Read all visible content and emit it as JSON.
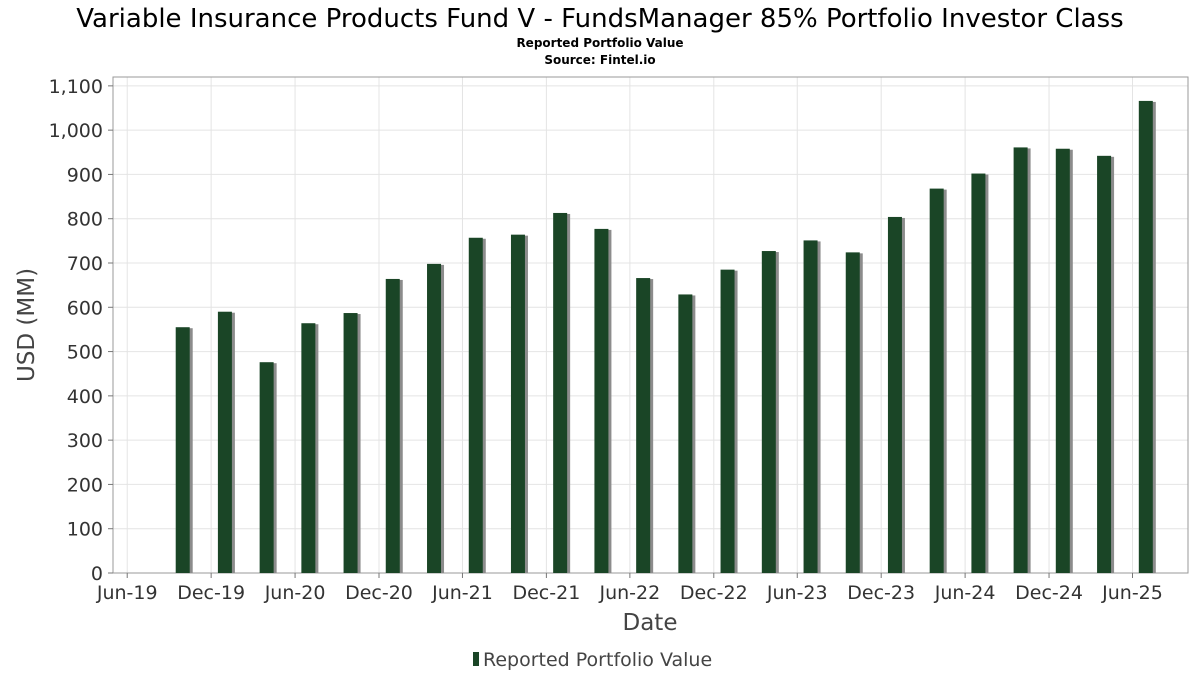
{
  "chart_data": {
    "type": "bar",
    "title": "Variable Insurance Products Fund V - FundsManager 85% Portfolio Investor Class",
    "subtitle": "Reported Portfolio Value",
    "source": "Source: Fintel.io",
    "xlabel": "Date",
    "ylabel": "USD (MM)",
    "ylim": [
      0,
      1120
    ],
    "yticks": [
      0,
      100,
      200,
      300,
      400,
      500,
      600,
      700,
      800,
      900,
      1000,
      1100
    ],
    "ytick_labels": [
      "0",
      "100",
      "200",
      "300",
      "400",
      "500",
      "600",
      "700",
      "800",
      "900",
      "1,000",
      "1,100"
    ],
    "xlim": [
      "2019-05-01",
      "2025-09-30"
    ],
    "xticks": [
      "2019-06-01",
      "2019-12-01",
      "2020-06-01",
      "2020-12-01",
      "2021-06-01",
      "2021-12-01",
      "2022-06-01",
      "2022-12-01",
      "2023-06-01",
      "2023-12-01",
      "2024-06-01",
      "2024-12-01",
      "2025-06-01"
    ],
    "xtick_labels": [
      "Jun-19",
      "Dec-19",
      "Jun-20",
      "Dec-20",
      "Jun-21",
      "Dec-21",
      "Jun-22",
      "Dec-22",
      "Jun-23",
      "Dec-23",
      "Jun-24",
      "Dec-24",
      "Jun-25"
    ],
    "grid": true,
    "legend_position": "bottom",
    "colors": {
      "bar": "#1a4526",
      "bar_shadow": "#8c8c8c"
    },
    "series": [
      {
        "name": "Reported Portfolio Value",
        "x": [
          "2019-09-30",
          "2019-12-31",
          "2020-03-31",
          "2020-06-30",
          "2020-09-30",
          "2020-12-31",
          "2021-03-31",
          "2021-06-30",
          "2021-09-30",
          "2021-12-31",
          "2022-03-31",
          "2022-06-30",
          "2022-09-30",
          "2022-12-31",
          "2023-03-31",
          "2023-06-30",
          "2023-09-30",
          "2023-12-31",
          "2024-03-31",
          "2024-06-30",
          "2024-09-30",
          "2024-12-31",
          "2025-03-31",
          "2025-06-30"
        ],
        "values": [
          555,
          590,
          476,
          564,
          587,
          664,
          698,
          757,
          764,
          813,
          777,
          666,
          629,
          685,
          727,
          751,
          724,
          804,
          868,
          902,
          961,
          958,
          942,
          1066
        ]
      }
    ]
  }
}
